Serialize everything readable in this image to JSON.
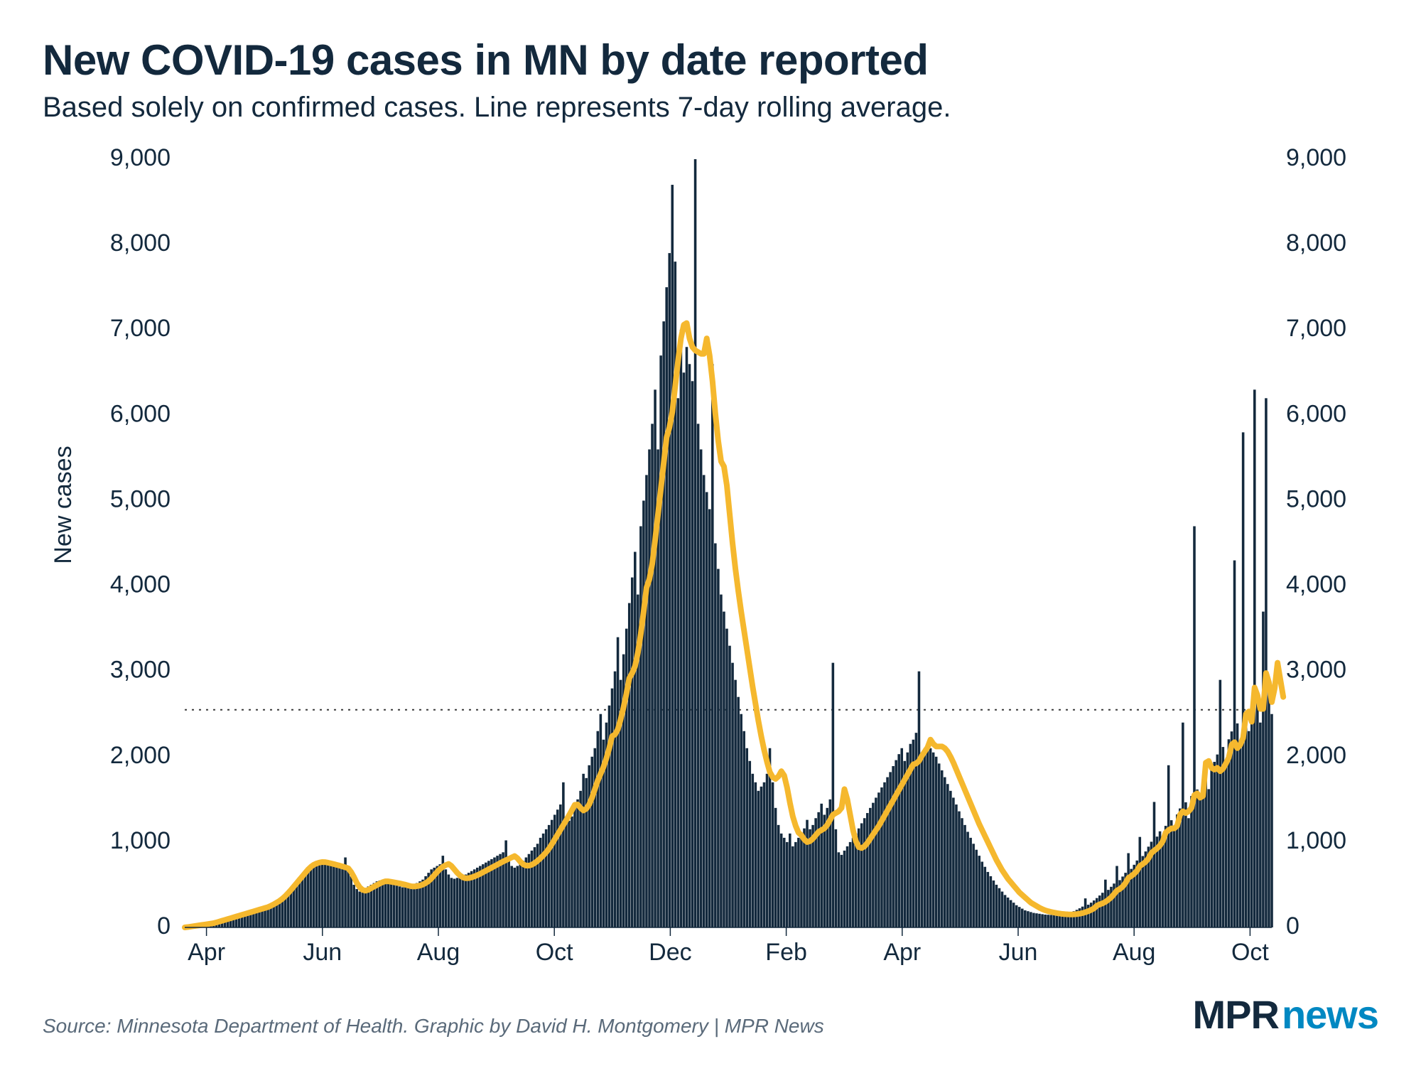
{
  "title": "New COVID-19 cases in MN by date reported",
  "subtitle": "Based solely on confirmed cases. Line represents 7-day rolling average.",
  "source": "Source: Minnesota Department of Health. Graphic by David H. Montgomery | MPR News",
  "logo": {
    "part1": "MPR",
    "part2": "news"
  },
  "chart": {
    "type": "bar+line",
    "ylabel": "New cases",
    "ylim": [
      0,
      9000
    ],
    "ytick_step": 1000,
    "ytick_labels": [
      "0",
      "1,000",
      "2,000",
      "3,000",
      "4,000",
      "5,000",
      "6,000",
      "7,000",
      "8,000",
      "9,000"
    ],
    "x_months": [
      "Apr",
      "Jun",
      "Aug",
      "Oct",
      "Dec",
      "Feb",
      "Apr",
      "Jun",
      "Aug",
      "Oct"
    ],
    "reference_line_y": 2550,
    "colors": {
      "background": "#ffffff",
      "bar": "#13293d",
      "line": "#f5b82e",
      "title": "#13293d",
      "subtitle": "#13293d",
      "axis_text": "#13293d",
      "source_text": "#5a6a7a",
      "ref_line": "#3a3a3a",
      "logo_primary": "#13293d",
      "logo_accent": "#0088c2"
    },
    "fonts": {
      "title_size": 60,
      "title_weight": 800,
      "subtitle_size": 40,
      "axis_label_size": 34,
      "ylabel_size": 34,
      "source_size": 28,
      "logo_size": 56
    },
    "line_width": 8,
    "bar_gap_ratio": 0.12,
    "bars": [
      0,
      5,
      10,
      15,
      20,
      25,
      30,
      35,
      40,
      45,
      50,
      60,
      70,
      80,
      90,
      100,
      110,
      120,
      130,
      140,
      150,
      160,
      170,
      180,
      190,
      200,
      210,
      220,
      230,
      240,
      260,
      280,
      300,
      320,
      350,
      380,
      420,
      460,
      500,
      540,
      580,
      620,
      660,
      700,
      730,
      750,
      760,
      770,
      770,
      760,
      750,
      740,
      730,
      720,
      710,
      700,
      820,
      680,
      600,
      500,
      450,
      420,
      430,
      460,
      480,
      500,
      520,
      540,
      550,
      540,
      530,
      520,
      510,
      500,
      490,
      480,
      470,
      470,
      480,
      490,
      500,
      520,
      540,
      560,
      600,
      640,
      680,
      700,
      720,
      740,
      840,
      680,
      620,
      580,
      570,
      580,
      590,
      600,
      620,
      640,
      660,
      680,
      700,
      720,
      740,
      760,
      780,
      800,
      820,
      840,
      860,
      880,
      1020,
      780,
      720,
      700,
      720,
      740,
      780,
      820,
      860,
      900,
      940,
      980,
      1050,
      1100,
      1150,
      1200,
      1260,
      1320,
      1380,
      1440,
      1700,
      1300,
      1250,
      1300,
      1400,
      1500,
      1600,
      1800,
      1750,
      1900,
      2000,
      2100,
      2300,
      2500,
      2200,
      2400,
      2600,
      2800,
      3000,
      3400,
      2900,
      3200,
      3500,
      3800,
      4100,
      4400,
      3900,
      4700,
      5000,
      5300,
      5600,
      5900,
      6300,
      5600,
      6700,
      7100,
      7500,
      7900,
      8700,
      7800,
      6200,
      7000,
      6500,
      6800,
      6600,
      6400,
      9000,
      5900,
      5600,
      5300,
      5100,
      4900,
      6600,
      4500,
      4200,
      3900,
      3700,
      3500,
      3300,
      3100,
      2900,
      2700,
      2500,
      2300,
      2100,
      1950,
      1800,
      1700,
      1600,
      1650,
      1700,
      1800,
      2100,
      1700,
      1400,
      1200,
      1100,
      1050,
      1000,
      1100,
      950,
      1000,
      1050,
      1100,
      1160,
      1260,
      1150,
      1200,
      1280,
      1350,
      1450,
      1320,
      1400,
      1500,
      3100,
      1150,
      880,
      850,
      900,
      950,
      1000,
      1050,
      1100,
      1160,
      1220,
      1280,
      1340,
      1400,
      1460,
      1520,
      1580,
      1640,
      1700,
      1760,
      1820,
      1890,
      1960,
      2030,
      2100,
      1950,
      2050,
      2150,
      2200,
      2280,
      3000,
      2050,
      2100,
      2150,
      2100,
      2050,
      2000,
      1920,
      1840,
      1760,
      1680,
      1600,
      1520,
      1440,
      1360,
      1280,
      1200,
      1120,
      1050,
      980,
      910,
      840,
      770,
      710,
      650,
      600,
      550,
      500,
      460,
      420,
      380,
      350,
      320,
      290,
      260,
      240,
      220,
      200,
      190,
      180,
      170,
      165,
      160,
      155,
      150,
      148,
      146,
      145,
      146,
      148,
      152,
      158,
      166,
      176,
      190,
      206,
      224,
      244,
      340,
      266,
      290,
      316,
      344,
      374,
      406,
      560,
      440,
      476,
      514,
      720,
      554,
      596,
      640,
      870,
      686,
      734,
      784,
      1060,
      836,
      890,
      946,
      1004,
      1470,
      1064,
      1126,
      1060,
      1190,
      1900,
      1256,
      1160,
      1324,
      1394,
      2400,
      1466,
      1280,
      1540,
      4700,
      1616,
      1500,
      1694,
      1774,
      1620,
      1856,
      1940,
      2026,
      2900,
      2114,
      1900,
      2204,
      2296,
      4300,
      2390,
      2100,
      5800,
      2486,
      2300,
      2584,
      6300,
      2684,
      2400,
      3700,
      6200,
      2786,
      2500
    ],
    "line": [
      0,
      4,
      9,
      14,
      19,
      24,
      29,
      34,
      39,
      44,
      49,
      58,
      68,
      78,
      88,
      98,
      108,
      118,
      128,
      138,
      148,
      158,
      168,
      178,
      188,
      198,
      208,
      218,
      228,
      238,
      253,
      270,
      290,
      310,
      335,
      365,
      400,
      438,
      478,
      518,
      558,
      598,
      638,
      678,
      710,
      735,
      750,
      760,
      766,
      765,
      758,
      750,
      742,
      733,
      724,
      714,
      704,
      693,
      650,
      590,
      520,
      470,
      440,
      430,
      440,
      460,
      478,
      496,
      514,
      530,
      540,
      540,
      534,
      528,
      522,
      516,
      508,
      500,
      490,
      482,
      480,
      484,
      490,
      502,
      520,
      542,
      574,
      612,
      650,
      684,
      710,
      730,
      744,
      720,
      680,
      640,
      608,
      586,
      576,
      578,
      586,
      598,
      612,
      628,
      646,
      664,
      682,
      700,
      718,
      736,
      754,
      772,
      788,
      804,
      820,
      836,
      810,
      770,
      740,
      724,
      724,
      734,
      754,
      780,
      810,
      844,
      880,
      924,
      976,
      1032,
      1088,
      1144,
      1200,
      1256,
      1314,
      1374,
      1436,
      1440,
      1400,
      1370,
      1390,
      1440,
      1520,
      1620,
      1720,
      1800,
      1880,
      1980,
      2100,
      2240,
      2260,
      2320,
      2440,
      2580,
      2740,
      2920,
      2980,
      3060,
      3220,
      3440,
      3700,
      3980,
      4080,
      4260,
      4540,
      4840,
      5140,
      5440,
      5740,
      5860,
      6040,
      6340,
      6640,
      6900,
      7060,
      7080,
      6900,
      6800,
      6760,
      6740,
      6720,
      6720,
      6900,
      6700,
      6400,
      6020,
      5700,
      5460,
      5400,
      5180,
      4840,
      4500,
      4200,
      3940,
      3700,
      3480,
      3260,
      3040,
      2820,
      2620,
      2420,
      2240,
      2080,
      1940,
      1820,
      1760,
      1740,
      1770,
      1830,
      1780,
      1640,
      1460,
      1300,
      1190,
      1110,
      1080,
      1030,
      1000,
      1010,
      1040,
      1080,
      1120,
      1140,
      1160,
      1200,
      1260,
      1320,
      1340,
      1360,
      1400,
      1620,
      1500,
      1320,
      1140,
      1010,
      940,
      930,
      950,
      990,
      1040,
      1090,
      1140,
      1190,
      1250,
      1310,
      1370,
      1430,
      1490,
      1550,
      1610,
      1670,
      1730,
      1790,
      1850,
      1910,
      1920,
      1950,
      2010,
      2060,
      2110,
      2200,
      2150,
      2120,
      2120,
      2120,
      2100,
      2060,
      2000,
      1930,
      1850,
      1770,
      1690,
      1610,
      1530,
      1450,
      1370,
      1290,
      1210,
      1140,
      1070,
      1000,
      930,
      860,
      790,
      730,
      670,
      620,
      570,
      530,
      490,
      450,
      410,
      380,
      350,
      320,
      290,
      270,
      250,
      230,
      214,
      200,
      190,
      182,
      175,
      168,
      163,
      158,
      155,
      153,
      152,
      153,
      156,
      161,
      168,
      178,
      190,
      205,
      223,
      255,
      270,
      282,
      300,
      324,
      352,
      390,
      432,
      450,
      478,
      520,
      580,
      602,
      628,
      664,
      720,
      742,
      768,
      808,
      870,
      900,
      926,
      960,
      1010,
      1110,
      1140,
      1160,
      1160,
      1190,
      1320,
      1360,
      1340,
      1360,
      1400,
      1550,
      1570,
      1520,
      1540,
      1930,
      1950,
      1870,
      1850,
      1870,
      1830,
      1860,
      1920,
      1990,
      2140,
      2170,
      2100,
      2140,
      2220,
      2500,
      2530,
      2410,
      2810,
      2720,
      2560,
      2560,
      2980,
      2870,
      2640,
      2800,
      3100,
      2900,
      2700
    ]
  }
}
